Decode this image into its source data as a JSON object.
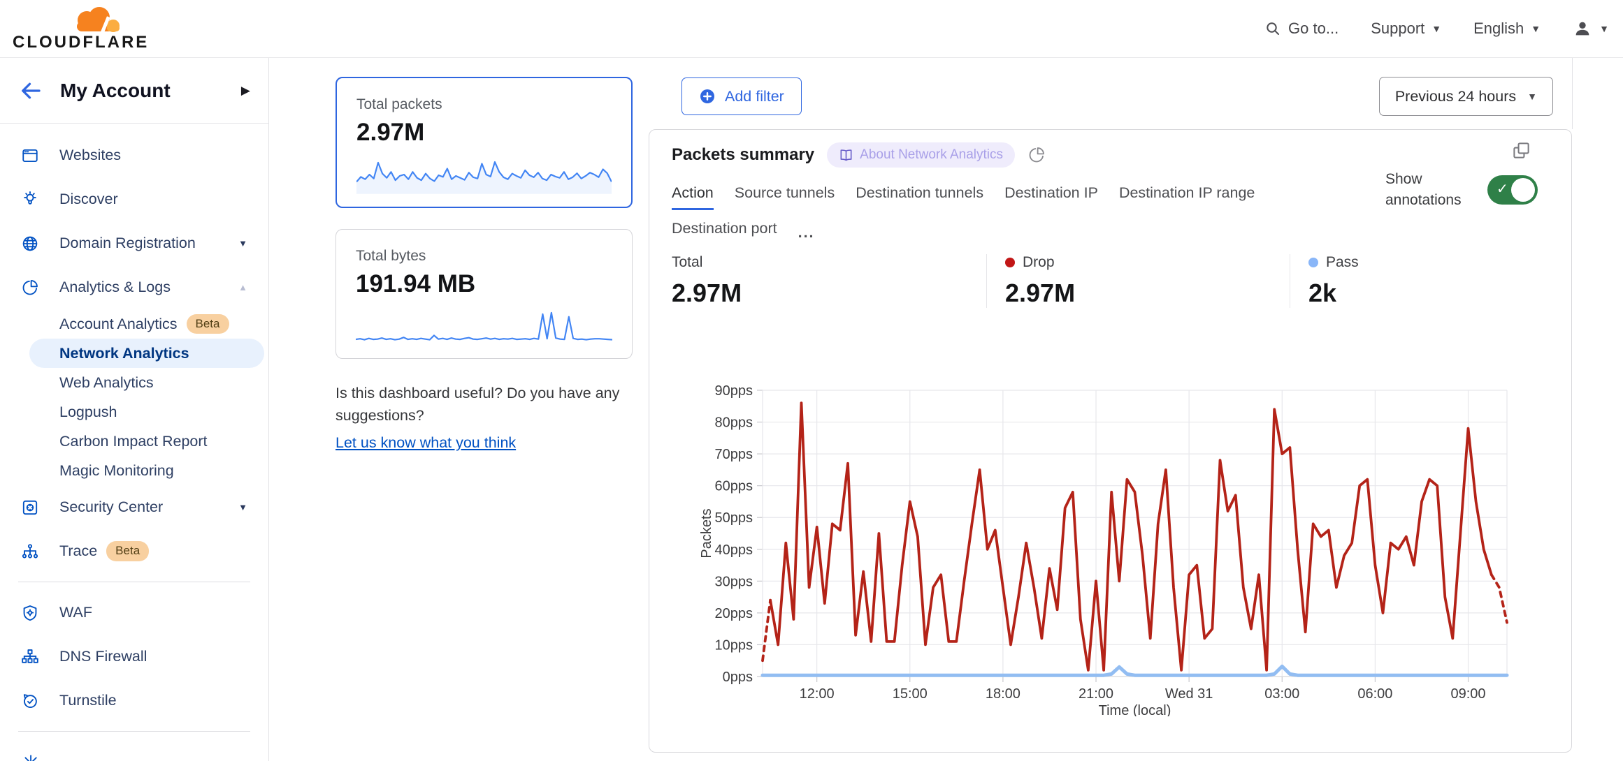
{
  "topbar": {
    "brand": "CLOUDFLARE",
    "goto": "Go to...",
    "support": "Support",
    "language": "English"
  },
  "sidebar": {
    "back_title": "My Account",
    "items": [
      {
        "type": "item",
        "icon": "browser",
        "label": "Websites"
      },
      {
        "type": "item",
        "icon": "bulb",
        "label": "Discover"
      },
      {
        "type": "item",
        "icon": "globe",
        "label": "Domain Registration",
        "caret": "down"
      },
      {
        "type": "item",
        "icon": "pie",
        "label": "Analytics & Logs",
        "caret": "up"
      },
      {
        "type": "sub",
        "label": "Account Analytics",
        "badge": "Beta"
      },
      {
        "type": "sub",
        "label": "Network Analytics",
        "selected": true
      },
      {
        "type": "sub",
        "label": "Web Analytics"
      },
      {
        "type": "sub",
        "label": "Logpush"
      },
      {
        "type": "sub",
        "label": "Carbon Impact Report"
      },
      {
        "type": "sub",
        "label": "Magic Monitoring"
      },
      {
        "type": "item",
        "icon": "safe",
        "label": "Security Center",
        "caret": "down"
      },
      {
        "type": "item",
        "icon": "trace",
        "label": "Trace",
        "badge": "Beta"
      },
      {
        "type": "divider"
      },
      {
        "type": "item",
        "icon": "shield",
        "label": "WAF"
      },
      {
        "type": "item",
        "icon": "tree",
        "label": "DNS Firewall"
      },
      {
        "type": "item",
        "icon": "clock",
        "label": "Turnstile"
      },
      {
        "type": "divider"
      },
      {
        "type": "item",
        "icon": "burst",
        "label": "",
        "partial": true
      }
    ]
  },
  "summary_cards": {
    "packets": {
      "label": "Total packets",
      "value": "2.97M",
      "selected": true,
      "sparkline": [
        30,
        45,
        38,
        52,
        40,
        88,
        55,
        42,
        60,
        35,
        48,
        52,
        38,
        60,
        42,
        35,
        55,
        40,
        32,
        50,
        45,
        70,
        38,
        48,
        42,
        36,
        58,
        44,
        40,
        85,
        52,
        46,
        90,
        60,
        44,
        38,
        55,
        48,
        42,
        65,
        50,
        44,
        58,
        40,
        35,
        52,
        46,
        42,
        60,
        38,
        44,
        56,
        40,
        48,
        58,
        52,
        44,
        68,
        56,
        30
      ]
    },
    "bytes": {
      "label": "Total bytes",
      "value": "191.94 MB",
      "selected": false,
      "sparkline": [
        12,
        14,
        11,
        15,
        12,
        13,
        16,
        12,
        14,
        11,
        13,
        18,
        12,
        14,
        12,
        15,
        13,
        11,
        24,
        13,
        15,
        12,
        16,
        13,
        12,
        15,
        17,
        13,
        12,
        14,
        16,
        13,
        15,
        12,
        14,
        13,
        15,
        12,
        13,
        14,
        12,
        15,
        13,
        88,
        14,
        92,
        16,
        13,
        12,
        80,
        15,
        12,
        13,
        11,
        13,
        14,
        14,
        13,
        12,
        11
      ]
    },
    "feedback_question": "Is this dashboard useful? Do you have any suggestions?",
    "feedback_link": "Let us know what you think"
  },
  "main": {
    "add_filter": "Add filter",
    "time_range": "Previous 24 hours",
    "panel_title": "Packets summary",
    "about_badge": "About Network Analytics",
    "tabs": [
      "Action",
      "Source tunnels",
      "Destination tunnels",
      "Destination IP",
      "Destination IP range",
      "Destination port"
    ],
    "active_tab_index": 0,
    "overflow_tab": "...",
    "show_annotations": "Show annotations",
    "annotations_on": true,
    "stats": [
      {
        "label": "Total",
        "value": "2.97M",
        "dot": null
      },
      {
        "label": "Drop",
        "value": "2.97M",
        "dot": "#c21616"
      },
      {
        "label": "Pass",
        "value": "2k",
        "dot": "#89b6f8"
      }
    ]
  },
  "chart_data": {
    "type": "line",
    "title": "Packets summary",
    "xlabel": "Time (local)",
    "ylabel": "Packets",
    "x_range": "Previous 24 hours",
    "n_points": 97,
    "interval_minutes": 15,
    "x_tick_labels": [
      "12:00",
      "15:00",
      "18:00",
      "21:00",
      "Wed 31",
      "03:00",
      "06:00",
      "09:00"
    ],
    "x_tick_indices": [
      7,
      19,
      31,
      43,
      55,
      67,
      79,
      91
    ],
    "y_tick_labels": [
      "0pps",
      "10pps",
      "20pps",
      "30pps",
      "40pps",
      "50pps",
      "60pps",
      "70pps",
      "80pps",
      "90pps"
    ],
    "ylim": [
      0,
      90
    ],
    "grid": true,
    "legend_position": "top",
    "series": [
      {
        "name": "Drop",
        "color": "#b42318",
        "dashed_head_segments": 1,
        "dashed_tail_segments": 2,
        "values": [
          5,
          24,
          10,
          42,
          18,
          86,
          28,
          47,
          23,
          48,
          46,
          67,
          13,
          33,
          11,
          45,
          11,
          11,
          35,
          55,
          44,
          10,
          28,
          32,
          11,
          11,
          30,
          48,
          65,
          40,
          46,
          28,
          10,
          25,
          42,
          28,
          12,
          34,
          21,
          53,
          58,
          18,
          2,
          30,
          2,
          58,
          30,
          62,
          58,
          38,
          12,
          48,
          65,
          28,
          2,
          32,
          35,
          12,
          15,
          68,
          52,
          57,
          28,
          15,
          32,
          2,
          84,
          70,
          72,
          40,
          14,
          48,
          44,
          46,
          28,
          38,
          42,
          60,
          62,
          35,
          20,
          42,
          40,
          44,
          35,
          55,
          62,
          60,
          25,
          12,
          45,
          78,
          55,
          40,
          32,
          28,
          17
        ]
      },
      {
        "name": "Pass",
        "color": "#92bdf2",
        "values": [
          0.4,
          0.4,
          0.4,
          0.4,
          0.4,
          0.4,
          0.4,
          0.4,
          0.4,
          0.4,
          0.4,
          0.4,
          0.4,
          0.4,
          0.4,
          0.4,
          0.4,
          0.4,
          0.4,
          0.4,
          0.4,
          0.4,
          0.4,
          0.4,
          0.4,
          0.4,
          0.4,
          0.4,
          0.4,
          0.4,
          0.4,
          0.4,
          0.4,
          0.4,
          0.4,
          0.4,
          0.4,
          0.4,
          0.4,
          0.4,
          0.4,
          0.4,
          0.4,
          0.4,
          0.4,
          0.8,
          3,
          0.8,
          0.4,
          0.4,
          0.4,
          0.4,
          0.4,
          0.4,
          0.4,
          0.4,
          0.4,
          0.4,
          0.4,
          0.4,
          0.4,
          0.4,
          0.4,
          0.4,
          0.4,
          0.4,
          0.8,
          3.2,
          0.8,
          0.4,
          0.4,
          0.4,
          0.4,
          0.4,
          0.4,
          0.4,
          0.4,
          0.4,
          0.4,
          0.4,
          0.4,
          0.4,
          0.4,
          0.4,
          0.4,
          0.4,
          0.4,
          0.4,
          0.4,
          0.4,
          0.4,
          0.4,
          0.4,
          0.4,
          0.4,
          0.4,
          0.4
        ]
      }
    ]
  },
  "colors": {
    "accent": "#2f66e0",
    "link": "#0051c3",
    "icon_blue": "#0051c3",
    "toggle_green": "#2f8048",
    "drop_red": "#b42318",
    "pass_blue": "#92bdf2",
    "sparkline_blue": "#4285f4",
    "brand_orange": "#f6821f",
    "brand_orange_light": "#fbad41"
  }
}
